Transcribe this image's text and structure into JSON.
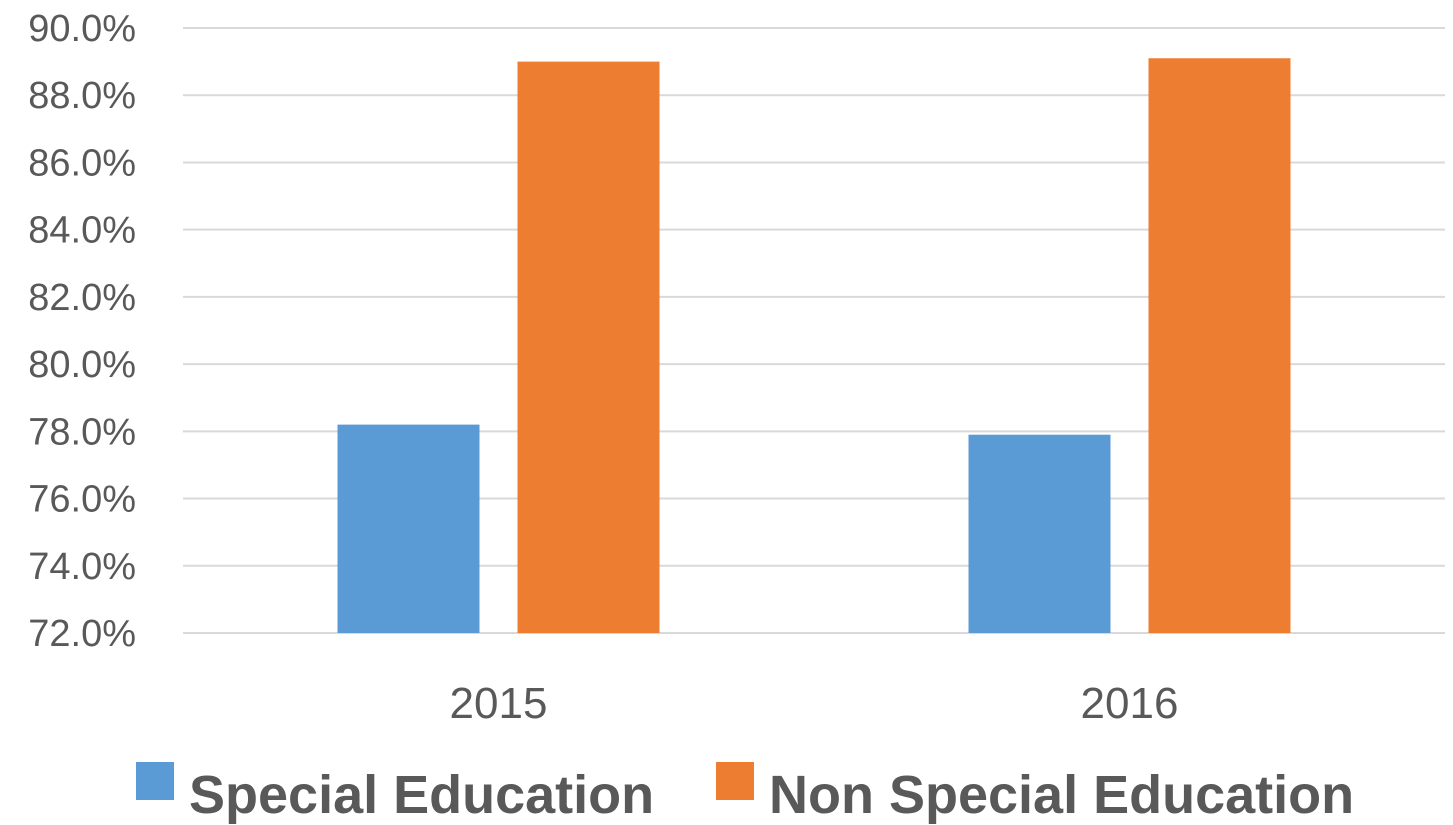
{
  "chart_data": {
    "type": "bar",
    "categories": [
      "2015",
      "2016"
    ],
    "series": [
      {
        "name": "Special Education",
        "values": [
          78.2,
          77.9
        ],
        "color": "#5b9bd5"
      },
      {
        "name": "Non Special Education",
        "values": [
          89.0,
          89.1
        ],
        "color": "#ed7d31"
      }
    ],
    "ylim": [
      72.0,
      90.0
    ],
    "yticks": [
      72.0,
      74.0,
      76.0,
      78.0,
      80.0,
      82.0,
      84.0,
      86.0,
      88.0,
      90.0
    ],
    "ytick_labels": [
      "72.0%",
      "74.0%",
      "76.0%",
      "78.0%",
      "80.0%",
      "82.0%",
      "84.0%",
      "86.0%",
      "88.0%",
      "90.0%"
    ],
    "title": "",
    "xlabel": "",
    "ylabel": "",
    "grid": true,
    "legend_position": "bottom"
  }
}
